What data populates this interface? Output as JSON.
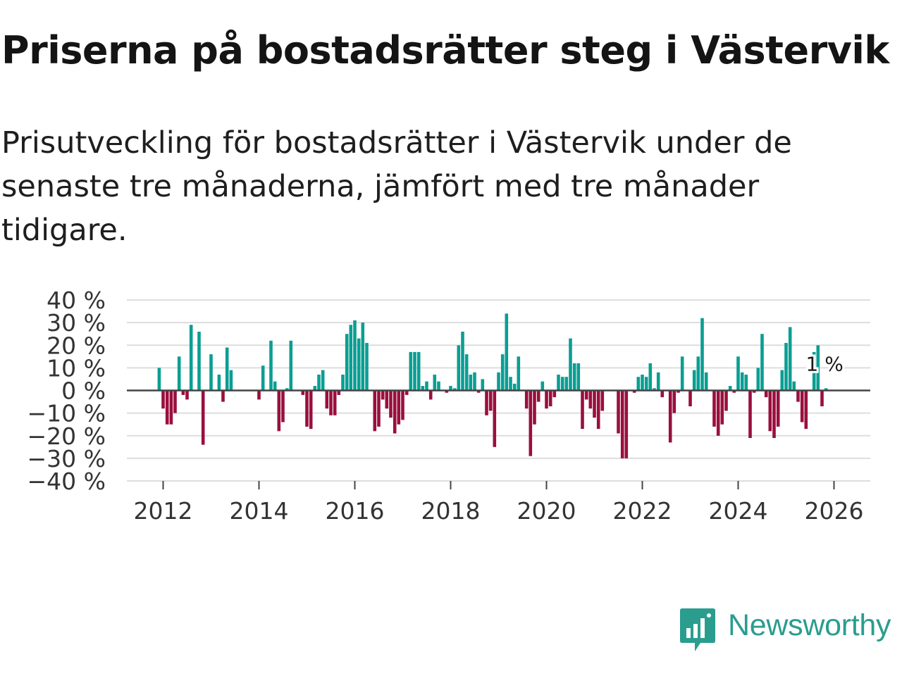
{
  "header": {
    "title": "Priserna på bostadsrätter steg i Västervik",
    "subtitle": "Prisutveckling för bostadsrätter i Västervik under de senaste tre månaderna, jämfört med tre månader tidigare."
  },
  "brand": {
    "name": "Newsworthy"
  },
  "colors": {
    "positive": "#0b9e93",
    "negative": "#990f3d",
    "grid": "#dddddd",
    "zero_line": "#444444",
    "brand": "#2a9d8f"
  },
  "chart_data": {
    "type": "bar",
    "title": "Priserna på bostadsrätter steg i Västervik",
    "xlabel": "",
    "ylabel": "",
    "x_start": 2011.917,
    "x_step": 0.08333,
    "ylim": [
      -40,
      40
    ],
    "yticks": [
      40,
      30,
      20,
      10,
      0,
      -10,
      -20,
      -30,
      -40
    ],
    "ytick_labels": [
      "40 %",
      "30 %",
      "20 %",
      "10 %",
      "0 %",
      "−10 %",
      "−20 %",
      "−30 %",
      "−40 %"
    ],
    "xticks": [
      2012,
      2014,
      2016,
      2018,
      2020,
      2022,
      2024,
      2026
    ],
    "xtick_labels": [
      "2012",
      "2014",
      "2016",
      "2018",
      "2020",
      "2022",
      "2024",
      "2026"
    ],
    "grid": true,
    "last_value_label": "1 %",
    "values": [
      10,
      -8,
      -15,
      -15,
      -10,
      15,
      -2,
      -4,
      29,
      0,
      26,
      -24,
      0,
      16,
      0,
      7,
      -5,
      19,
      9,
      0,
      0,
      0,
      0,
      0,
      0,
      -4,
      11,
      0,
      22,
      4,
      -18,
      -14,
      1,
      22,
      0,
      0,
      -2,
      -16,
      -17,
      2,
      7,
      9,
      -8,
      -11,
      -11,
      -2,
      7,
      25,
      29,
      31,
      23,
      30,
      21,
      0,
      -18,
      -16,
      -4,
      -8,
      -12,
      -19,
      -15,
      -13,
      -2,
      17,
      17,
      17,
      2,
      4,
      -4,
      7,
      4,
      0,
      -1,
      2,
      1,
      20,
      26,
      16,
      7,
      8,
      -1,
      5,
      -11,
      -9,
      -25,
      8,
      16,
      34,
      6,
      3,
      15,
      0,
      -8,
      -29,
      -15,
      -5,
      4,
      -8,
      -7,
      -3,
      7,
      6,
      6,
      23,
      12,
      12,
      -17,
      -4,
      -8,
      -12,
      -17,
      -9,
      0,
      0,
      0,
      -19,
      -30,
      -30,
      0,
      -1,
      6,
      7,
      6,
      12,
      1,
      8,
      -3,
      0,
      -23,
      -10,
      -1,
      15,
      0,
      -7,
      9,
      15,
      32,
      8,
      0,
      -16,
      -20,
      -15,
      -9,
      2,
      -1,
      15,
      8,
      7,
      -21,
      -1,
      10,
      25,
      -3,
      -18,
      -21,
      -16,
      9,
      21,
      28,
      4,
      -5,
      -14,
      -17,
      0,
      17,
      20,
      -7,
      1
    ]
  }
}
